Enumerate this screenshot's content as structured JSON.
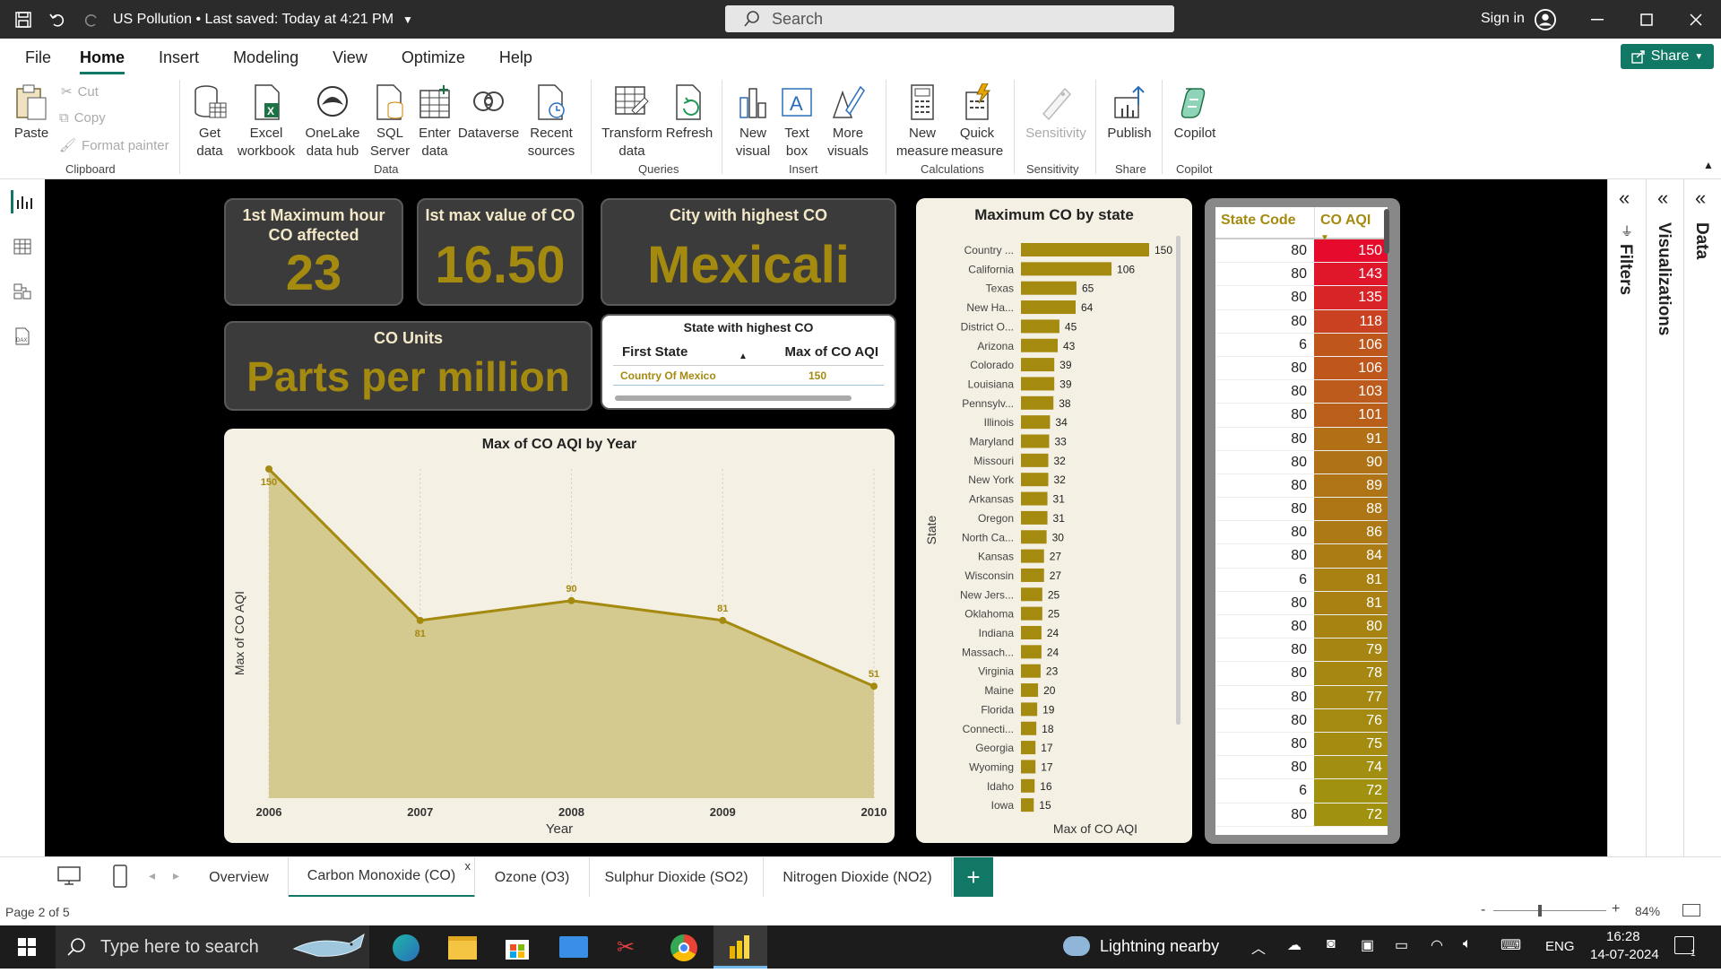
{
  "titlebar": {
    "title": "US Pollution • Last saved: Today at 4:21 PM",
    "search_placeholder": "Search",
    "signin": "Sign in"
  },
  "menu": [
    "File",
    "Home",
    "Insert",
    "Modeling",
    "View",
    "Optimize",
    "Help"
  ],
  "share_label": "Share",
  "ribbon": {
    "paste": "Paste",
    "cut": "Cut",
    "copy": "Copy",
    "format_painter": "Format painter",
    "get_data": "Get data",
    "excel": "Excel workbook",
    "onelake": "OneLake data hub",
    "sql": "SQL Server",
    "enter_data": "Enter data",
    "dataverse": "Dataverse",
    "recent": "Recent sources",
    "transform": "Transform data",
    "refresh": "Refresh",
    "new_visual": "New visual",
    "text_box": "Text box",
    "more_visuals": "More visuals",
    "new_measure": "New measure",
    "quick_measure": "Quick measure",
    "sensitivity": "Sensitivity",
    "publish": "Publish",
    "copilot": "Copilot",
    "groups": {
      "clipboard": "Clipboard",
      "data": "Data",
      "queries": "Queries",
      "insert": "Insert",
      "calculations": "Calculations",
      "sensitivity": "Sensitivity",
      "share": "Share",
      "copilot": "Copilot"
    }
  },
  "panes": {
    "filters": "Filters",
    "visualizations": "Visualizations",
    "data": "Data"
  },
  "cards": {
    "max_hour_title": "1st Maximum hour CO affected",
    "max_hour_value": "23",
    "max_value_title": "Ist max value of CO",
    "max_value_value": "16.50",
    "city_title": "City with highest CO",
    "city_value": "Mexicali",
    "units_title": "CO Units",
    "units_value": "Parts per million"
  },
  "state_table": {
    "title": "State with highest CO",
    "col1": "First State",
    "col2": "Max of CO AQI",
    "row_state": "Country Of Mexico",
    "row_value": "150"
  },
  "chart_data": [
    {
      "type": "area",
      "title": "Max of CO AQI by Year",
      "xlabel": "Year",
      "ylabel": "Max of CO AQI",
      "x": [
        "2006",
        "2007",
        "2008",
        "2009",
        "2010"
      ],
      "values": [
        150,
        81,
        90,
        81,
        51
      ],
      "ylim": [
        0,
        150
      ]
    },
    {
      "type": "bar",
      "title": "Maximum CO by state",
      "xlabel": "Max of CO AQI",
      "ylabel": "State",
      "categories": [
        "Country ...",
        "California",
        "Texas",
        "New Ha...",
        "District O...",
        "Arizona",
        "Colorado",
        "Louisiana",
        "Pennsylv...",
        "Illinois",
        "Maryland",
        "Missouri",
        "New York",
        "Arkansas",
        "Oregon",
        "North Ca...",
        "Kansas",
        "Wisconsin",
        "New Jers...",
        "Oklahoma",
        "Indiana",
        "Massach...",
        "Virginia",
        "Maine",
        "Florida",
        "Connecti...",
        "Georgia",
        "Wyoming",
        "Idaho",
        "Iowa"
      ],
      "values": [
        150,
        106,
        65,
        64,
        45,
        43,
        39,
        39,
        38,
        34,
        33,
        32,
        32,
        31,
        31,
        30,
        27,
        27,
        25,
        25,
        24,
        24,
        23,
        20,
        19,
        18,
        17,
        17,
        16,
        15
      ]
    }
  ],
  "code_table": {
    "col1": "State Code",
    "col2": "CO AQI",
    "codes": [
      "80",
      "80",
      "80",
      "80",
      "6",
      "80",
      "80",
      "80",
      "80",
      "80",
      "80",
      "80",
      "80",
      "80",
      "6",
      "80",
      "80",
      "80",
      "80",
      "80",
      "80",
      "80",
      "80",
      "6",
      "80"
    ],
    "aqi": [
      "150",
      "143",
      "135",
      "118",
      "106",
      "106",
      "103",
      "101",
      "91",
      "90",
      "89",
      "88",
      "86",
      "84",
      "81",
      "81",
      "80",
      "79",
      "78",
      "77",
      "76",
      "75",
      "74",
      "72",
      "72"
    ]
  },
  "pagetabs": [
    "Overview",
    "Carbon Monoxide (CO)",
    "Ozone (O3)",
    "Sulphur Dioxide (SO2)",
    "Nitrogen Dioxide (NO2)"
  ],
  "status": {
    "page": "Page 2 of 5",
    "zoom": "84%"
  },
  "taskbar": {
    "search": "Type here to search",
    "weather": "Lightning nearby",
    "lang": "ENG",
    "time": "16:28",
    "date": "14-07-2024"
  }
}
